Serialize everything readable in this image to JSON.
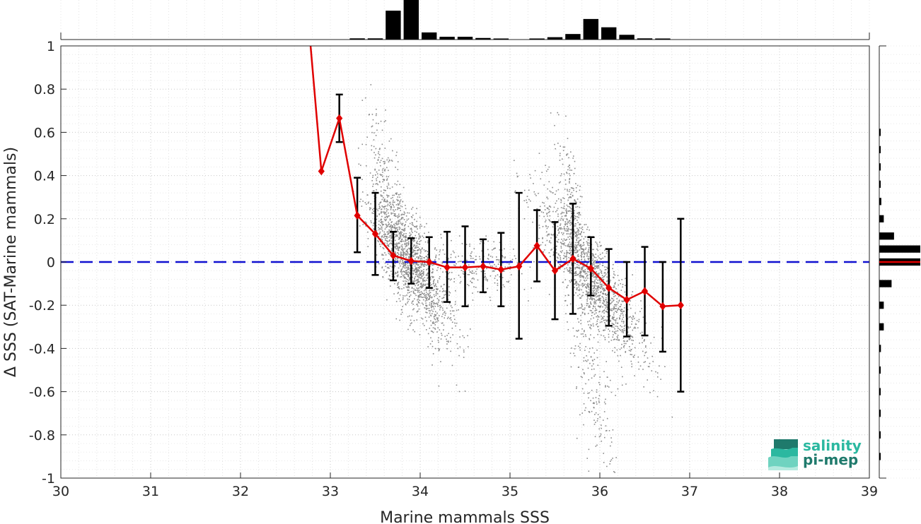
{
  "chart_data": {
    "type": "scatter",
    "xlabel": "Marine mammals SSS",
    "ylabel": "Δ SSS (SAT-Marine mammals)",
    "xlim": [
      30,
      39
    ],
    "ylim": [
      -1,
      1
    ],
    "xticks": [
      "30",
      "31",
      "32",
      "33",
      "34",
      "35",
      "36",
      "37",
      "38",
      "39"
    ],
    "yticks": [
      "1",
      "0.8",
      "0.6",
      "0.4",
      "0.2",
      "0",
      "-0.2",
      "-0.4",
      "-0.6",
      "-0.8",
      "-1"
    ],
    "grid": true,
    "grid_minor": true,
    "reference_line": {
      "y": 0,
      "style": "dashed",
      "color": "#1010d0"
    },
    "binned_mean": {
      "color": "#e00000",
      "x": [
        32.78,
        32.9,
        33.1,
        33.3,
        33.5,
        33.7,
        33.9,
        34.1,
        34.3,
        34.5,
        34.7,
        34.9,
        35.1,
        35.3,
        35.5,
        35.7,
        35.9,
        36.1,
        36.3,
        36.5,
        36.7,
        36.9
      ],
      "y": [
        1.0,
        0.42,
        0.665,
        0.215,
        0.13,
        0.03,
        0.005,
        0.0,
        -0.025,
        -0.025,
        -0.02,
        -0.035,
        -0.02,
        0.075,
        -0.04,
        0.015,
        -0.03,
        -0.12,
        -0.175,
        -0.135,
        -0.205,
        -0.2
      ],
      "markers_from_index": 1
    },
    "error_bars": {
      "color": "#000000",
      "x": [
        33.1,
        33.3,
        33.5,
        33.7,
        33.9,
        34.1,
        34.3,
        34.5,
        34.7,
        34.9,
        35.1,
        35.3,
        35.5,
        35.7,
        35.9,
        36.1,
        36.3,
        36.5,
        36.7,
        36.9
      ],
      "lower": [
        0.555,
        0.045,
        -0.06,
        -0.085,
        -0.1,
        -0.12,
        -0.185,
        -0.205,
        -0.14,
        -0.205,
        -0.355,
        -0.09,
        -0.265,
        -0.24,
        -0.155,
        -0.295,
        -0.345,
        -0.34,
        -0.415,
        -0.6
      ],
      "upper": [
        0.775,
        0.39,
        0.32,
        0.14,
        0.11,
        0.115,
        0.14,
        0.165,
        0.105,
        0.135,
        0.32,
        0.24,
        0.185,
        0.27,
        0.115,
        0.06,
        0.0,
        0.07,
        0.0,
        0.2
      ]
    },
    "scatter_clusters": [
      {
        "x": 33.9,
        "y": -0.01,
        "sx": 0.22,
        "sy": 0.11,
        "slope": -0.55,
        "n": 1400
      },
      {
        "x": 34.6,
        "y": -0.02,
        "sx": 0.3,
        "sy": 0.07,
        "slope": 0.0,
        "n": 250
      },
      {
        "x": 35.9,
        "y": -0.07,
        "sx": 0.3,
        "sy": 0.1,
        "slope": -0.55,
        "n": 1400
      },
      {
        "x": 33.65,
        "y": 0.25,
        "sx": 0.12,
        "sy": 0.15,
        "slope": -1.4,
        "n": 300
      },
      {
        "x": 35.7,
        "y": 0.25,
        "sx": 0.1,
        "sy": 0.12,
        "slope": -1.4,
        "n": 200
      },
      {
        "x": 35.9,
        "y": -0.5,
        "sx": 0.15,
        "sy": 0.18,
        "slope": -1.2,
        "n": 220
      }
    ],
    "scatter_color": "#8a8a8a",
    "top_histogram": {
      "bin_width": 0.2,
      "x": [
        33.3,
        33.5,
        33.7,
        33.9,
        34.1,
        34.3,
        34.5,
        34.7,
        34.9,
        35.3,
        35.5,
        35.7,
        35.9,
        36.1,
        36.3,
        36.5,
        36.7
      ],
      "counts": [
        0.03,
        0.03,
        0.73,
        1.0,
        0.18,
        0.07,
        0.07,
        0.04,
        0.02,
        0.02,
        0.06,
        0.14,
        0.52,
        0.31,
        0.12,
        0.03,
        0.01
      ]
    },
    "right_histogram": {
      "bin_width": 0.04,
      "y": [
        0.6,
        0.52,
        0.44,
        0.36,
        0.28,
        0.2,
        0.12,
        0.06,
        0.0,
        -0.1,
        -0.2,
        -0.3,
        -0.4,
        -0.5,
        -0.6,
        -0.7,
        -0.8,
        -0.9
      ],
      "counts": [
        0.02,
        0.02,
        0.02,
        0.02,
        0.05,
        0.11,
        0.36,
        1.0,
        1.0,
        0.3,
        0.11,
        0.11,
        0.04,
        0.02,
        0.02,
        0.02,
        0.02,
        0.02
      ],
      "mean_color": "#e00000"
    }
  },
  "logo": {
    "line1": "salinity",
    "line2": "pi-mep",
    "color1": "#2bb8a0",
    "color2": "#1f7a6c"
  }
}
